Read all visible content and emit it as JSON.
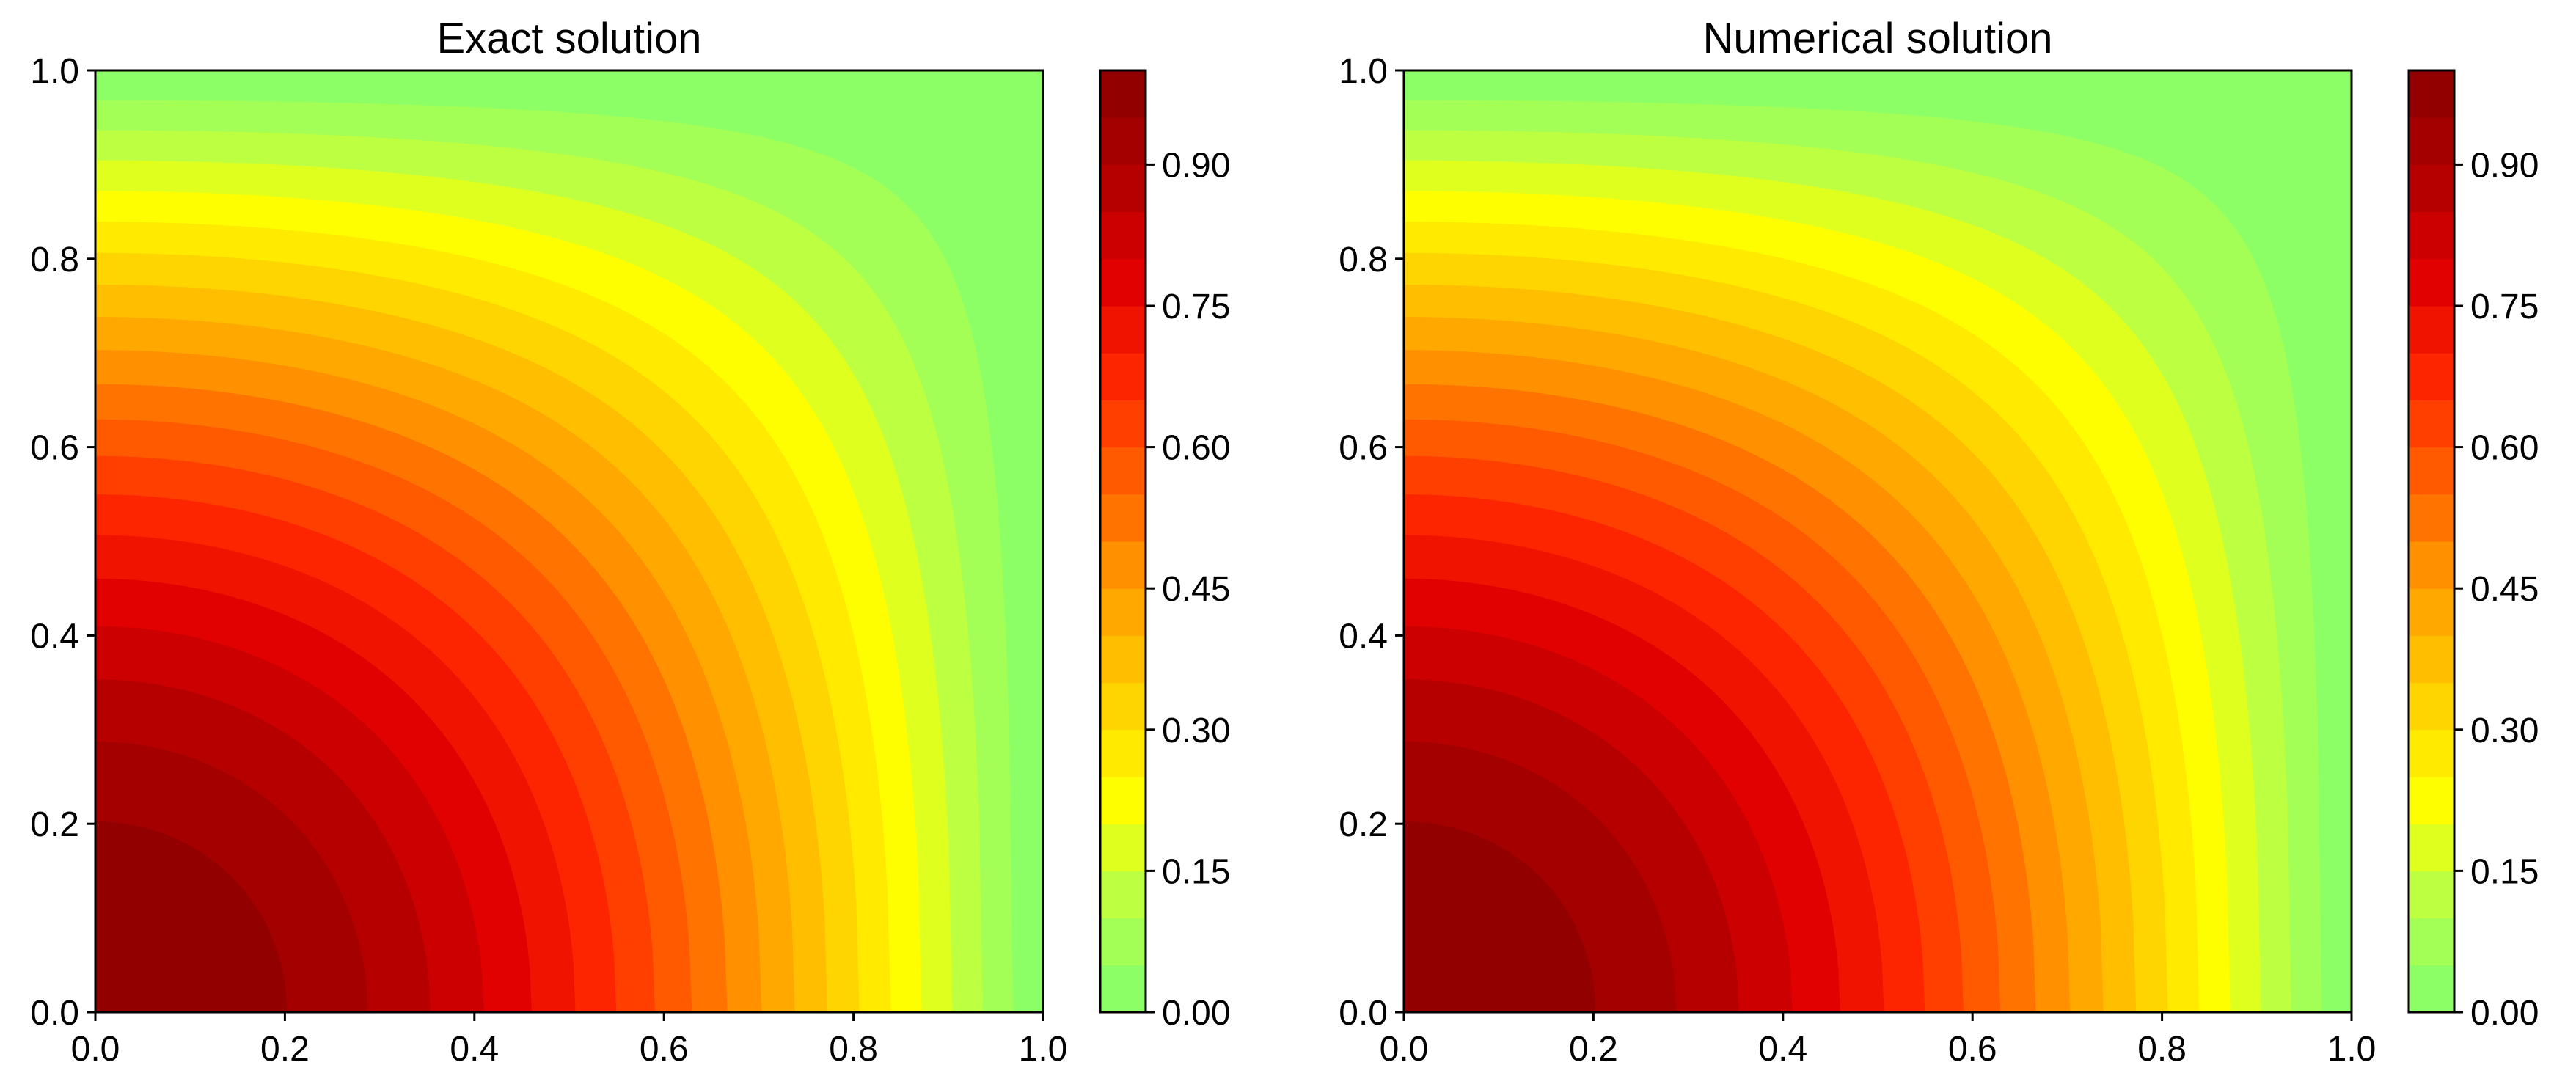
{
  "chart_data": [
    {
      "type": "heatmap",
      "subtype": "filled-contour",
      "title": "Exact solution",
      "xlabel": "",
      "ylabel": "",
      "xlim": [
        0.0,
        1.0
      ],
      "ylim": [
        0.0,
        1.0
      ],
      "x_ticks": [
        "0.0",
        "0.2",
        "0.4",
        "0.6",
        "0.8",
        "1.0"
      ],
      "y_ticks": [
        "0.0",
        "0.2",
        "0.4",
        "0.6",
        "0.8",
        "1.0"
      ],
      "field": "cos(pi*x/2)*cos(pi*y/2)",
      "levels": [
        0.0,
        0.05,
        0.1,
        0.15,
        0.2,
        0.25,
        0.3,
        0.35,
        0.4,
        0.45,
        0.5,
        0.55,
        0.6,
        0.65,
        0.7,
        0.75,
        0.8,
        0.85,
        0.9,
        0.95,
        1.0
      ],
      "colorbar": {
        "range": [
          0.0,
          1.0
        ],
        "ticks": [
          "0.00",
          "0.15",
          "0.30",
          "0.45",
          "0.60",
          "0.75",
          "0.90"
        ]
      },
      "grid": false
    },
    {
      "type": "heatmap",
      "subtype": "filled-contour",
      "title": "Numerical solution",
      "xlabel": "",
      "ylabel": "",
      "xlim": [
        0.0,
        1.0
      ],
      "ylim": [
        0.0,
        1.0
      ],
      "x_ticks": [
        "0.0",
        "0.2",
        "0.4",
        "0.6",
        "0.8",
        "1.0"
      ],
      "y_ticks": [
        "0.0",
        "0.2",
        "0.4",
        "0.6",
        "0.8",
        "1.0"
      ],
      "field": "cos(pi*x/2)*cos(pi*y/2)",
      "levels": [
        0.0,
        0.05,
        0.1,
        0.15,
        0.2,
        0.25,
        0.3,
        0.35,
        0.4,
        0.45,
        0.5,
        0.55,
        0.6,
        0.65,
        0.7,
        0.75,
        0.8,
        0.85,
        0.9,
        0.95,
        1.0
      ],
      "colorbar": {
        "range": [
          0.0,
          1.0
        ],
        "ticks": [
          "0.00",
          "0.15",
          "0.30",
          "0.45",
          "0.60",
          "0.75",
          "0.90"
        ]
      },
      "grid": false
    }
  ],
  "colors": {
    "colormap": [
      "#80ff6e",
      "#b4ff4a",
      "#ffff00",
      "#ffd200",
      "#ffa000",
      "#ff6400",
      "#ff2800",
      "#e00000",
      "#b00000",
      "#8b0000"
    ]
  }
}
